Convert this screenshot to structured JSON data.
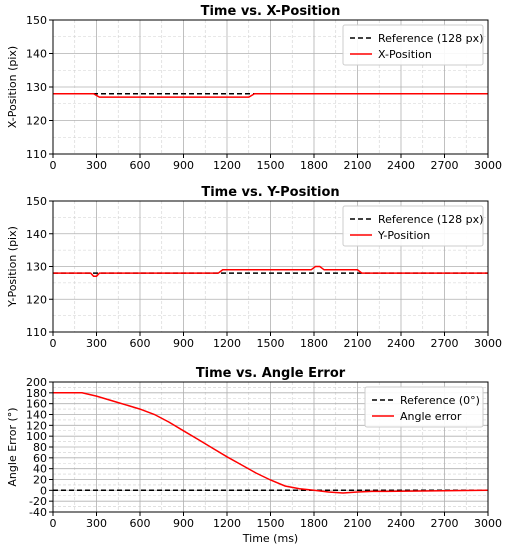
{
  "chart_data": [
    {
      "type": "line",
      "title": "Time vs. X-Position",
      "xlabel": "",
      "ylabel": "X-Position (pix)",
      "xlim": [
        0,
        3000
      ],
      "ylim": [
        110,
        150
      ],
      "xticks": [
        0,
        300,
        600,
        900,
        1200,
        1500,
        1800,
        2100,
        2400,
        2700,
        3000
      ],
      "yticks": [
        110,
        120,
        130,
        140,
        150
      ],
      "grid": true,
      "legend_position": "top-right",
      "series": [
        {
          "name": "Reference (128 px)",
          "color": "#000000",
          "style": "dashed",
          "x": [
            0,
            3000
          ],
          "y": [
            128,
            128
          ]
        },
        {
          "name": "X-Position",
          "color": "#ff0000",
          "style": "solid",
          "x": [
            0,
            280,
            320,
            1350,
            1390,
            3000
          ],
          "y": [
            128,
            128,
            127,
            127,
            128,
            128
          ]
        }
      ]
    },
    {
      "type": "line",
      "title": "Time vs. Y-Position",
      "xlabel": "",
      "ylabel": "Y-Position (pix)",
      "xlim": [
        0,
        3000
      ],
      "ylim": [
        110,
        150
      ],
      "xticks": [
        0,
        300,
        600,
        900,
        1200,
        1500,
        1800,
        2100,
        2400,
        2700,
        3000
      ],
      "yticks": [
        110,
        120,
        130,
        140,
        150
      ],
      "grid": true,
      "legend_position": "top-right",
      "series": [
        {
          "name": "Reference (128 px)",
          "color": "#000000",
          "style": "dashed",
          "x": [
            0,
            3000
          ],
          "y": [
            128,
            128
          ]
        },
        {
          "name": "Y-Position",
          "color": "#ff0000",
          "style": "solid",
          "x": [
            0,
            260,
            280,
            300,
            320,
            1140,
            1170,
            1780,
            1810,
            1840,
            1870,
            2100,
            2130,
            3000
          ],
          "y": [
            128,
            128,
            127,
            127,
            128,
            128,
            129,
            129,
            130,
            130,
            129,
            129,
            128,
            128
          ]
        }
      ]
    },
    {
      "type": "line",
      "title": "Time vs. Angle Error",
      "xlabel": "Time (ms)",
      "ylabel": "Angle Error (°)",
      "xlim": [
        0,
        3000
      ],
      "ylim": [
        -40,
        200
      ],
      "xticks": [
        0,
        300,
        600,
        900,
        1200,
        1500,
        1800,
        2100,
        2400,
        2700,
        3000
      ],
      "yticks": [
        -40,
        -20,
        0,
        20,
        40,
        60,
        80,
        100,
        120,
        140,
        160,
        180,
        200
      ],
      "grid": true,
      "legend_position": "top-right",
      "series": [
        {
          "name": "Reference (0°)",
          "color": "#000000",
          "style": "dashed",
          "x": [
            0,
            3000
          ],
          "y": [
            0,
            0
          ]
        },
        {
          "name": "Angle error",
          "color": "#ff0000",
          "style": "solid",
          "x": [
            0,
            200,
            300,
            450,
            600,
            700,
            800,
            900,
            1000,
            1100,
            1200,
            1300,
            1400,
            1500,
            1600,
            1700,
            1800,
            1900,
            2000,
            2100,
            2200,
            2300,
            3000
          ],
          "y": [
            180,
            180,
            174,
            162,
            150,
            140,
            126,
            110,
            94,
            78,
            62,
            47,
            32,
            19,
            8,
            3,
            0,
            -3,
            -5,
            -3,
            -2,
            -2,
            0
          ]
        }
      ]
    }
  ]
}
